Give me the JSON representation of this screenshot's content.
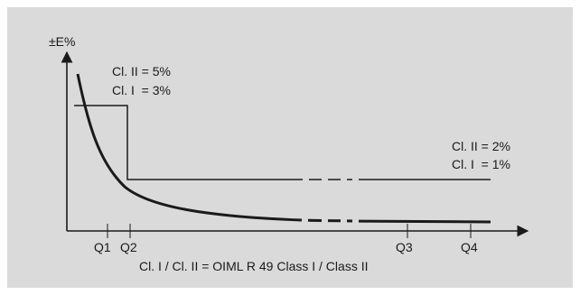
{
  "diagram": {
    "y_axis_label": "±E%",
    "limit_low_flow": {
      "line1": "Cl. II = 5%",
      "line2": "Cl. I  = 3%"
    },
    "limit_high_flow": {
      "line1": "Cl. II = 2%",
      "line2": "Cl. I  = 1%"
    },
    "x_ticks": [
      "Q1",
      "Q2",
      "Q3",
      "Q4"
    ],
    "caption": "Cl. I / Cl. II = OIML R 49 Class I / Class II"
  },
  "colors": {
    "background": "#dadada",
    "stroke": "#1a1a1a"
  }
}
